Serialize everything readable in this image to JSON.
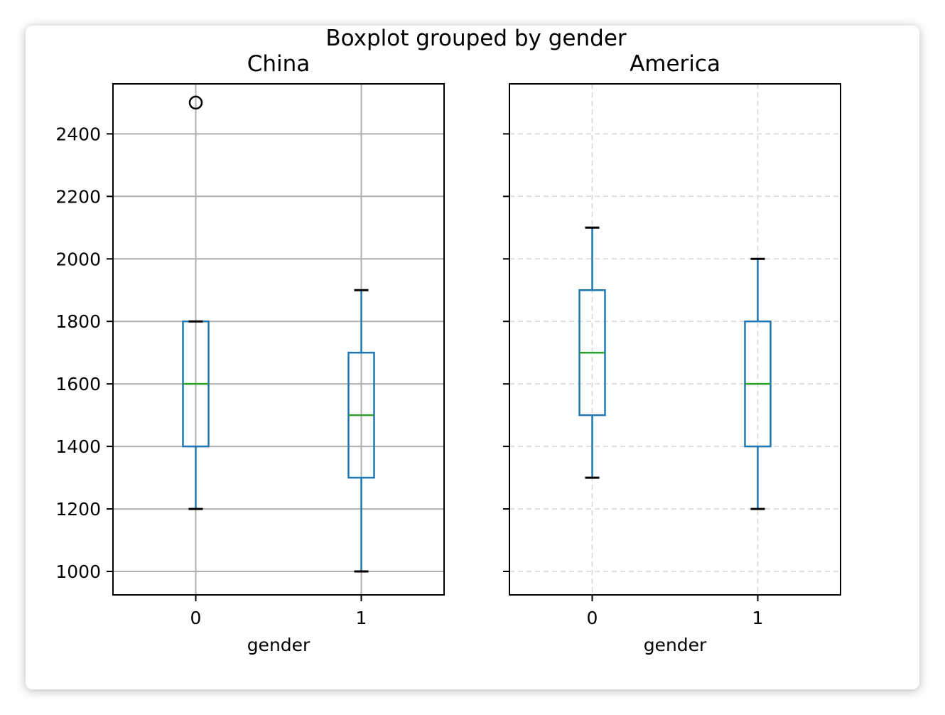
{
  "chart_data": {
    "type": "boxplot",
    "title": "Boxplot grouped by gender",
    "xlabel": "gender",
    "ylim": [
      925,
      2560
    ],
    "yticks": [
      1000,
      1200,
      1400,
      1600,
      1800,
      2000,
      2200,
      2400
    ],
    "ytick_labels": [
      "1000",
      "1200",
      "1400",
      "1600",
      "1800",
      "2000",
      "2200",
      "2400"
    ],
    "categories": [
      "0",
      "1"
    ],
    "colors": {
      "box": "#1f77b4",
      "median": "#2ca02c",
      "whisker_cap": "#000000",
      "grid": "#b0b0b0"
    },
    "panels": [
      {
        "title": "China",
        "grid": "solid",
        "boxes": [
          {
            "category": "0",
            "whisker_low": 1200,
            "q1": 1400,
            "median": 1600,
            "q3": 1800,
            "whisker_high": 1800,
            "outliers": [
              2500
            ]
          },
          {
            "category": "1",
            "whisker_low": 1000,
            "q1": 1300,
            "median": 1500,
            "q3": 1700,
            "whisker_high": 1900,
            "outliers": []
          }
        ]
      },
      {
        "title": "America",
        "grid": "dashed",
        "boxes": [
          {
            "category": "0",
            "whisker_low": 1300,
            "q1": 1500,
            "median": 1700,
            "q3": 1900,
            "whisker_high": 2100,
            "outliers": []
          },
          {
            "category": "1",
            "whisker_low": 1200,
            "q1": 1400,
            "median": 1600,
            "q3": 1800,
            "whisker_high": 2000,
            "outliers": []
          }
        ]
      }
    ]
  }
}
